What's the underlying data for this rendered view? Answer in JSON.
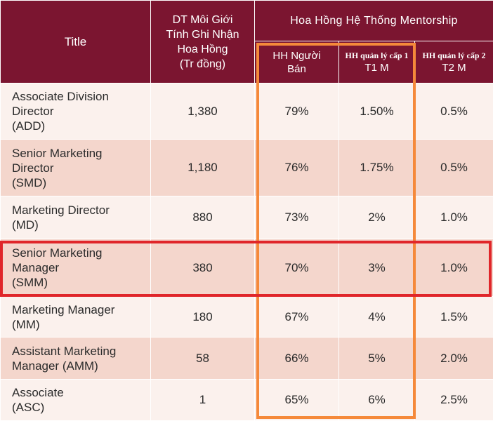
{
  "headers": {
    "title": "Title",
    "dt": "DT Môi Giới\nTính Ghi Nhận\nHoa Hồng\n(Tr đồng)",
    "group": "Hoa Hồng Hệ Thống Mentorship",
    "sub1": "HH Người\nBán",
    "sub2_line1": "HH quản lý cấp 1",
    "sub2_line2": "T1 M",
    "sub3_line1": "HH quản lý cấp 2",
    "sub3_line2": "T2 M"
  },
  "rows": [
    {
      "title": "Associate Division\nDirector\n(ADD)",
      "dt": "1,380",
      "hh": "79%",
      "t1": "1.50%",
      "t2": "0.5%"
    },
    {
      "title": "Senior Marketing\nDirector\n(SMD)",
      "dt": "1,180",
      "hh": "76%",
      "t1": "1.75%",
      "t2": "0.5%"
    },
    {
      "title": "Marketing Director\n(MD)",
      "dt": "880",
      "hh": "73%",
      "t1": "2%",
      "t2": "1.0%"
    },
    {
      "title": "Senior Marketing\nManager\n(SMM)",
      "dt": "380",
      "hh": "70%",
      "t1": "3%",
      "t2": "1.0%"
    },
    {
      "title": "Marketing Manager\n(MM)",
      "dt": "180",
      "hh": "67%",
      "t1": "4%",
      "t2": "1.5%"
    },
    {
      "title": "Assistant Marketing\nManager (AMM)",
      "dt": "58",
      "hh": "66%",
      "t1": "5%",
      "t2": "2.0%"
    },
    {
      "title": "Associate\n(ASC)",
      "dt": "1",
      "hh": "65%",
      "t1": "6%",
      "t2": "2.5%"
    }
  ],
  "colors": {
    "header_bg": "#7b1530",
    "row_light": "#fbf1ed",
    "row_dark": "#f4d6cc",
    "highlight_orange": "#f5893a",
    "highlight_red": "#e0262a"
  }
}
